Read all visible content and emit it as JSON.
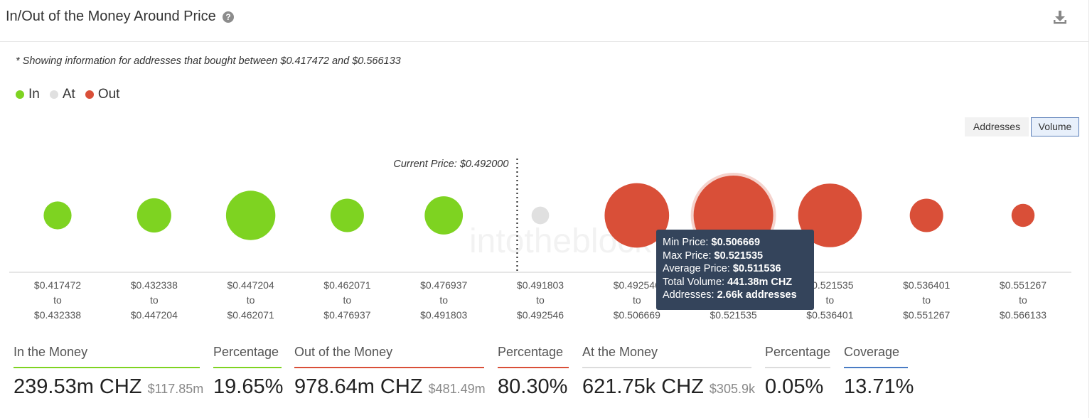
{
  "header": {
    "title": "In/Out of the Money Around Price",
    "help_icon": "?"
  },
  "note": "* Showing information for addresses that bought between $0.417472 and $0.566133",
  "legend": [
    {
      "label": "In",
      "color": "#7ed321"
    },
    {
      "label": "At",
      "color": "#e0e0e0"
    },
    {
      "label": "Out",
      "color": "#d94f38"
    }
  ],
  "toggle": {
    "addresses": "Addresses",
    "volume": "Volume"
  },
  "watermark": "intotheblock",
  "chart_data": {
    "type": "bubble",
    "current_price_label": "Current Price: $0.492000",
    "categories": [
      {
        "from": "$0.417472",
        "to": "$0.432338",
        "status": "in",
        "relative_size": 0.35
      },
      {
        "from": "$0.432338",
        "to": "$0.447204",
        "status": "in",
        "relative_size": 0.43
      },
      {
        "from": "$0.447204",
        "to": "$0.462071",
        "status": "in",
        "relative_size": 0.62
      },
      {
        "from": "$0.462071",
        "to": "$0.476937",
        "status": "in",
        "relative_size": 0.42
      },
      {
        "from": "$0.476937",
        "to": "$0.491803",
        "status": "in",
        "relative_size": 0.48
      },
      {
        "from": "$0.491803",
        "to": "$0.492546",
        "status": "at",
        "relative_size": 0.22
      },
      {
        "from": "$0.492546",
        "to": "$0.506669",
        "status": "out",
        "relative_size": 0.81
      },
      {
        "from": "$0.506669",
        "to": "$0.521535",
        "status": "out",
        "relative_size": 1.0
      },
      {
        "from": "$0.521535",
        "to": "$0.536401",
        "status": "out",
        "relative_size": 0.8
      },
      {
        "from": "$0.536401",
        "to": "$0.551267",
        "status": "out",
        "relative_size": 0.42
      },
      {
        "from": "$0.551267",
        "to": "$0.566133",
        "status": "out",
        "relative_size": 0.29
      }
    ],
    "connector": "to",
    "highlighted_index": 7,
    "tooltip": {
      "min_label": "Min Price:",
      "min_value": "$0.506669",
      "max_label": "Max Price:",
      "max_value": "$0.521535",
      "avg_label": "Average Price:",
      "avg_value": "$0.511536",
      "vol_label": "Total Volume:",
      "vol_value": "441.38m CHZ",
      "addr_label": "Addresses:",
      "addr_value": "2.66k addresses"
    }
  },
  "stats": [
    {
      "label": "In the Money",
      "value": "239.53m CHZ",
      "sub": "$117.85m",
      "color": "#7ed321"
    },
    {
      "label": "Percentage",
      "value": "19.65%",
      "sub": "",
      "color": "#7ed321"
    },
    {
      "label": "Out of the Money",
      "value": "978.64m CHZ",
      "sub": "$481.49m",
      "color": "#d94f38"
    },
    {
      "label": "Percentage",
      "value": "80.30%",
      "sub": "",
      "color": "#d94f38"
    },
    {
      "label": "At the Money",
      "value": "621.75k CHZ",
      "sub": "$305.9k",
      "color": "#dcdcdc"
    },
    {
      "label": "Percentage",
      "value": "0.05%",
      "sub": "",
      "color": "#dcdcdc"
    },
    {
      "label": "Coverage",
      "value": "13.71%",
      "sub": "",
      "color": "#4a7cc4"
    }
  ]
}
